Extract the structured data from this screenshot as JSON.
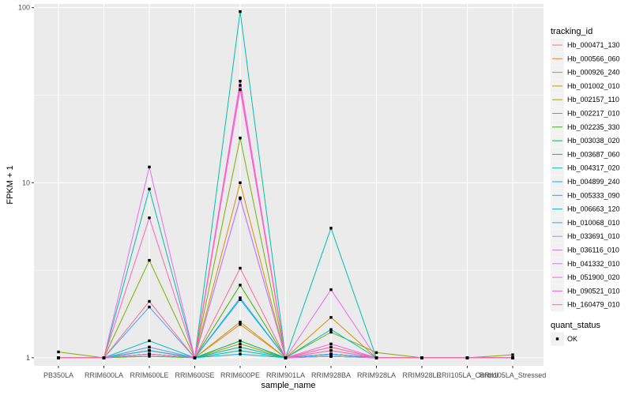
{
  "chart_data": {
    "type": "line",
    "xlabel": "sample_name",
    "ylabel": "FPKM + 1",
    "y_scale": "log10",
    "ylim": [
      0.9,
      105
    ],
    "y_ticks": [
      {
        "value": 1,
        "label": "1"
      },
      {
        "value": 10,
        "label": "10"
      },
      {
        "value": 100,
        "label": "100"
      }
    ],
    "categories": [
      "PB350LA",
      "RRIM600LA",
      "RRIM600LE",
      "RRIM600SE",
      "RRIM600PE",
      "RRIM901LA",
      "RRIM928BA",
      "RRIM928LA",
      "RRIM928LE",
      "RRII105LA_Control",
      "RRII105LA_Stressed"
    ],
    "legend_title": "tracking_id",
    "series": [
      {
        "name": "Hb_000471_130",
        "color": "#F8766D",
        "values": [
          1,
          1,
          1.1,
          1,
          1.15,
          1,
          1.05,
          1,
          1,
          1,
          1
        ]
      },
      {
        "name": "Hb_000566_060",
        "color": "#EA8331",
        "values": [
          1,
          1,
          1.05,
          1,
          1.55,
          1,
          1.1,
          1,
          1,
          1,
          1
        ]
      },
      {
        "name": "Hb_000926_240",
        "color": "#D89000",
        "values": [
          1,
          1,
          1.05,
          1,
          10,
          1,
          1.7,
          1,
          1,
          1,
          1
        ]
      },
      {
        "name": "Hb_001002_010",
        "color": "#C09B00",
        "values": [
          1,
          1,
          1.1,
          1,
          1.6,
          1,
          1.05,
          1,
          1,
          1,
          1
        ]
      },
      {
        "name": "Hb_002157_110",
        "color": "#A3A500",
        "values": [
          1,
          1,
          1.05,
          1,
          1.2,
          1,
          1.02,
          1,
          1,
          1,
          1
        ]
      },
      {
        "name": "Hb_002217_010",
        "color": "#7CAE00",
        "values": [
          1.08,
          1,
          3.6,
          1,
          18,
          1,
          1.4,
          1.07,
          1,
          1,
          1.04
        ]
      },
      {
        "name": "Hb_002235_330",
        "color": "#39B600",
        "values": [
          1,
          1,
          1.02,
          1,
          2.6,
          1,
          1.02,
          1,
          1,
          1,
          1
        ]
      },
      {
        "name": "Hb_003038_020",
        "color": "#00BB4E",
        "values": [
          1,
          1,
          1.05,
          1,
          1.25,
          1,
          1.05,
          1,
          1,
          1,
          1
        ]
      },
      {
        "name": "Hb_003687_060",
        "color": "#00BF7D",
        "values": [
          1,
          1,
          1.15,
          1,
          1.1,
          1,
          1.02,
          1,
          1,
          1,
          1
        ]
      },
      {
        "name": "Hb_004317_020",
        "color": "#00C1A3",
        "values": [
          1,
          1,
          9.2,
          1,
          95,
          1,
          5.5,
          1,
          1,
          1,
          1
        ]
      },
      {
        "name": "Hb_004899_240",
        "color": "#00BFC4",
        "values": [
          1,
          1,
          1.25,
          1,
          2.15,
          1,
          1.45,
          1,
          1,
          1,
          1
        ]
      },
      {
        "name": "Hb_005333_090",
        "color": "#00BAE0",
        "values": [
          1,
          1,
          1.1,
          1,
          1.15,
          1,
          1.05,
          1,
          1,
          1,
          1
        ]
      },
      {
        "name": "Hb_006663_120",
        "color": "#00B0F6",
        "values": [
          1,
          1,
          1.05,
          1,
          1.05,
          1,
          1.02,
          1,
          1,
          1,
          1
        ]
      },
      {
        "name": "Hb_010068_010",
        "color": "#35A2FF",
        "values": [
          1,
          1,
          1.95,
          1,
          2.2,
          1,
          1.05,
          1,
          1,
          1,
          1
        ]
      },
      {
        "name": "Hb_033691_010",
        "color": "#9590FF",
        "values": [
          1,
          1,
          1.15,
          1,
          8.1,
          1,
          1.15,
          1,
          1,
          1,
          1
        ]
      },
      {
        "name": "Hb_036116_010",
        "color": "#C77CFF",
        "values": [
          1,
          1,
          1.05,
          1,
          8.2,
          1,
          1.02,
          1,
          1,
          1,
          1
        ]
      },
      {
        "name": "Hb_041332_010",
        "color": "#E76BF3",
        "values": [
          1,
          1,
          12.3,
          1,
          36,
          1,
          2.45,
          1,
          1,
          1,
          1
        ]
      },
      {
        "name": "Hb_051900_020",
        "color": "#FA62DB",
        "values": [
          1,
          1,
          1.05,
          1,
          38,
          1,
          1.2,
          1,
          1,
          1,
          1
        ]
      },
      {
        "name": "Hb_090521_010",
        "color": "#FF62BC",
        "values": [
          1,
          1,
          6.3,
          1,
          34,
          1,
          1.1,
          1,
          1,
          1,
          1
        ]
      },
      {
        "name": "Hb_160479_010",
        "color": "#FF6C91",
        "values": [
          1,
          1,
          2.1,
          1,
          3.25,
          1,
          1.15,
          1,
          1,
          1,
          1
        ]
      }
    ],
    "shape_legend": {
      "title": "quant_status",
      "items": [
        {
          "label": "OK",
          "shape": "square"
        }
      ]
    },
    "grid": true,
    "legend_position": "right"
  }
}
